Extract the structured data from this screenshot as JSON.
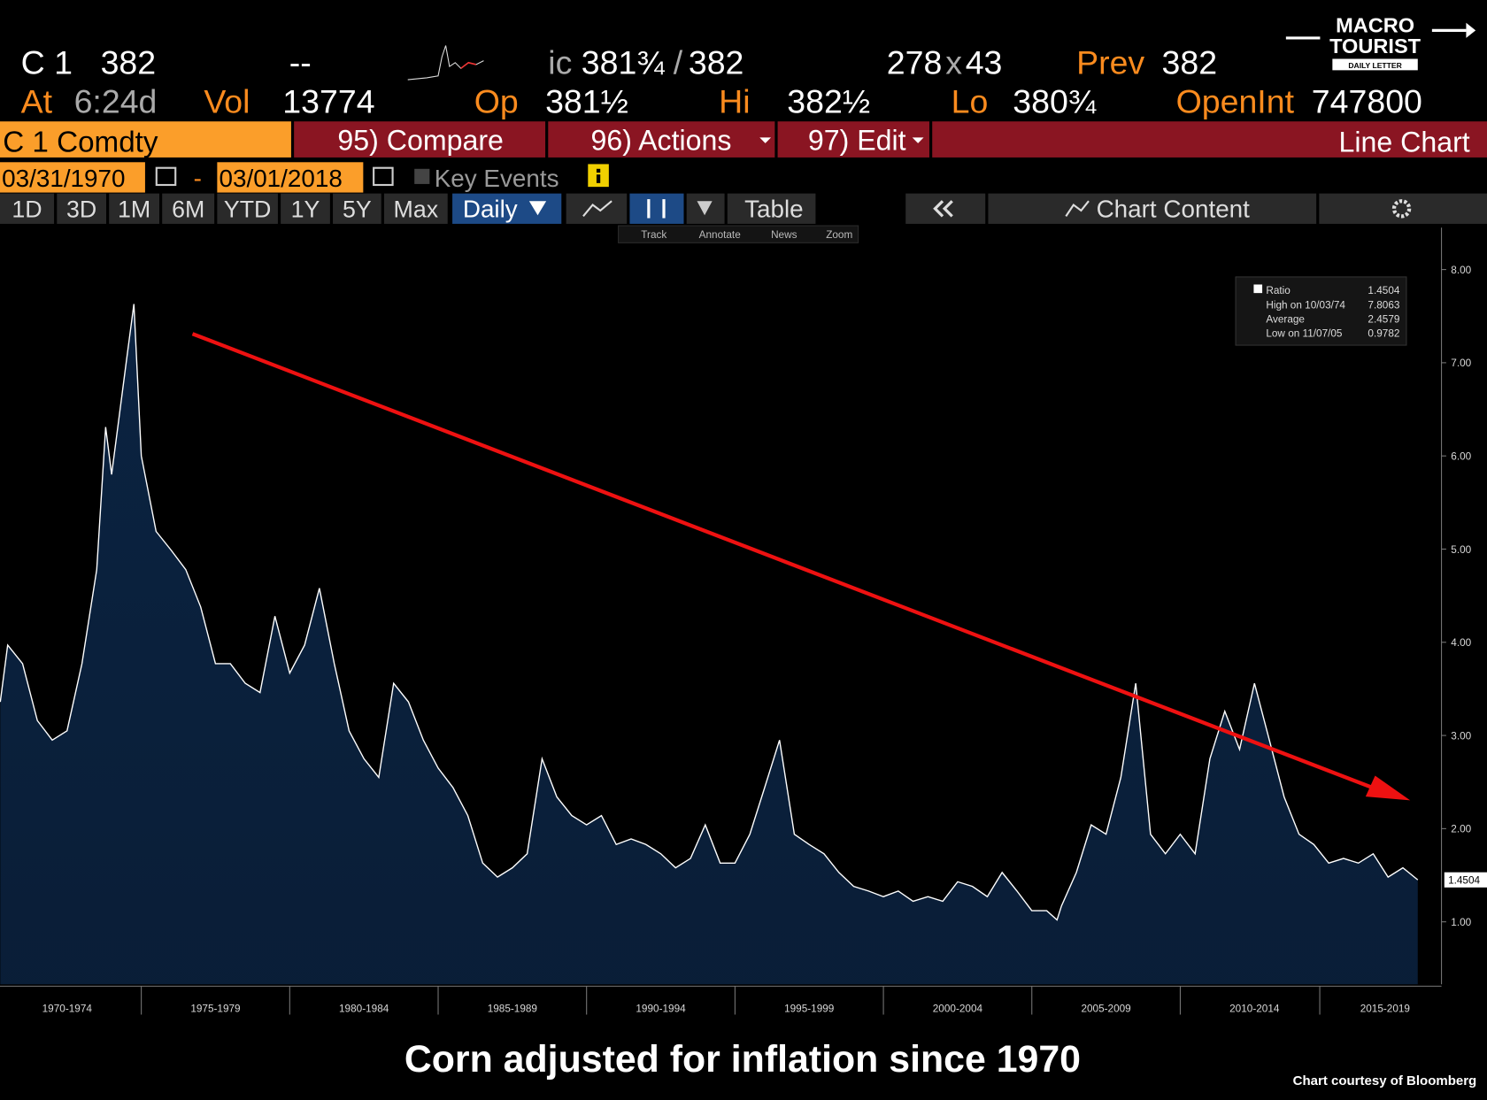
{
  "header": {
    "ticker": "C 1",
    "last": "382",
    "change": "--",
    "bid_prefix": "ic",
    "bid": "381¾",
    "ask_sep": "/",
    "ask": "382",
    "bid_size": "278",
    "size_sep": "x",
    "ask_size": "43",
    "prev_label": "Prev",
    "prev": "382",
    "time_label": "At",
    "time": "6:24d",
    "vol_label": "Vol",
    "vol": "13774",
    "open_label": "Op",
    "open": "381½",
    "high_label": "Hi",
    "high": "382½",
    "low_label": "Lo",
    "low": "380¾",
    "oi_label": "OpenInt",
    "oi": "747800"
  },
  "logo": {
    "line1": "MACRO",
    "line2": "TOURIST",
    "line3": "DAILY LETTER"
  },
  "toolbar": {
    "security": "C 1 Comdty",
    "buttons": [
      "95) Compare",
      "96) Actions",
      "97) Edit"
    ],
    "chart_type": "Line Chart"
  },
  "date_range": {
    "start": "03/31/1970",
    "separator": "-",
    "end": "03/01/2018",
    "key_events": "Key Events"
  },
  "periods": [
    "1D",
    "3D",
    "1M",
    "6M",
    "YTD",
    "1Y",
    "5Y",
    "Max"
  ],
  "frequency": "Daily",
  "table": "Table",
  "chart_content": "Chart Content",
  "chart_tools": [
    "Track",
    "Annotate",
    "News",
    "Zoom"
  ],
  "caption": "Corn adjusted for inflation since 1970",
  "credit": "Chart courtesy of Bloomberg",
  "chart_data": {
    "type": "area",
    "color": "#ffffff",
    "fill": "#0b2341",
    "x": [
      1970.25,
      1970.5,
      1971,
      1971.5,
      1972,
      1972.5,
      1973,
      1973.5,
      1973.8,
      1974,
      1974.5,
      1974.75,
      1975,
      1975.5,
      1976,
      1976.5,
      1977,
      1977.5,
      1978,
      1978.5,
      1979,
      1979.5,
      1980,
      1980.5,
      1981,
      1981.5,
      1982,
      1982.5,
      1983,
      1983.5,
      1984,
      1984.5,
      1985,
      1985.5,
      1986,
      1986.5,
      1987,
      1987.5,
      1988,
      1988.5,
      1989,
      1989.5,
      1990,
      1990.5,
      1991,
      1991.5,
      1992,
      1992.5,
      1993,
      1993.5,
      1994,
      1994.5,
      1995,
      1995.5,
      1996,
      1996.5,
      1997,
      1997.5,
      1998,
      1998.5,
      1999,
      1999.5,
      2000,
      2000.5,
      2001,
      2001.5,
      2002,
      2002.5,
      2003,
      2003.5,
      2004,
      2004.5,
      2005,
      2005.5,
      2005.85,
      2006,
      2006.5,
      2007,
      2007.5,
      2008,
      2008.5,
      2009,
      2009.5,
      2010,
      2010.5,
      2011,
      2011.5,
      2012,
      2012.5,
      2013,
      2013.5,
      2014,
      2014.5,
      2015,
      2015.5,
      2016,
      2016.5,
      2017,
      2017.5,
      2018
    ],
    "values": [
      3.36,
      3.97,
      3.77,
      3.16,
      2.95,
      3.05,
      3.77,
      4.78,
      6.31,
      5.8,
      7.02,
      7.63,
      6.0,
      5.19,
      4.99,
      4.78,
      4.38,
      3.77,
      3.77,
      3.56,
      3.46,
      4.28,
      3.67,
      3.97,
      4.58,
      3.77,
      3.05,
      2.75,
      2.55,
      3.56,
      3.36,
      2.95,
      2.65,
      2.44,
      2.14,
      1.63,
      1.48,
      1.58,
      1.73,
      2.75,
      2.34,
      2.14,
      2.04,
      2.14,
      1.83,
      1.89,
      1.83,
      1.73,
      1.58,
      1.68,
      2.04,
      1.63,
      1.63,
      1.94,
      2.44,
      2.95,
      1.94,
      1.83,
      1.73,
      1.53,
      1.38,
      1.33,
      1.27,
      1.33,
      1.22,
      1.27,
      1.22,
      1.43,
      1.38,
      1.27,
      1.53,
      1.33,
      1.12,
      1.12,
      1.02,
      1.17,
      1.53,
      2.04,
      1.94,
      2.55,
      3.56,
      1.94,
      1.73,
      1.94,
      1.73,
      2.75,
      3.26,
      2.85,
      3.56,
      2.95,
      2.34,
      1.94,
      1.83,
      1.63,
      1.68,
      1.63,
      1.73,
      1.48,
      1.58,
      1.4504
    ],
    "xlim": [
      1970.24,
      2018.8
    ],
    "ylim": [
      0.33,
      8.45
    ],
    "xticks": [
      {
        "value": 1972.5,
        "label": "1970-1974"
      },
      {
        "value": 1977.5,
        "label": "1975-1979"
      },
      {
        "value": 1982.5,
        "label": "1980-1984"
      },
      {
        "value": 1987.5,
        "label": "1985-1989"
      },
      {
        "value": 1992.5,
        "label": "1990-1994"
      },
      {
        "value": 1997.5,
        "label": "1995-1999"
      },
      {
        "value": 2002.5,
        "label": "2000-2004"
      },
      {
        "value": 2007.5,
        "label": "2005-2009"
      },
      {
        "value": 2012.5,
        "label": "2010-2014"
      },
      {
        "value": 2016.9,
        "label": "2015-2019"
      }
    ],
    "yticks": [
      {
        "value": 1,
        "label": "1.00"
      },
      {
        "value": 2,
        "label": "2.00"
      },
      {
        "value": 3,
        "label": "3.00"
      },
      {
        "value": 4,
        "label": "4.00"
      },
      {
        "value": 5,
        "label": "5.00"
      },
      {
        "value": 6,
        "label": "6.00"
      },
      {
        "value": 7,
        "label": "7.00"
      },
      {
        "value": 8,
        "label": "8.00"
      }
    ],
    "stats": [
      {
        "label": "Ratio",
        "value": 1.4504
      },
      {
        "label": "High on 10/03/74",
        "value": 7.8063
      },
      {
        "label": "Average",
        "value": 2.4579
      },
      {
        "label": "Low on 11/07/05",
        "value": 0.9782
      }
    ]
  }
}
